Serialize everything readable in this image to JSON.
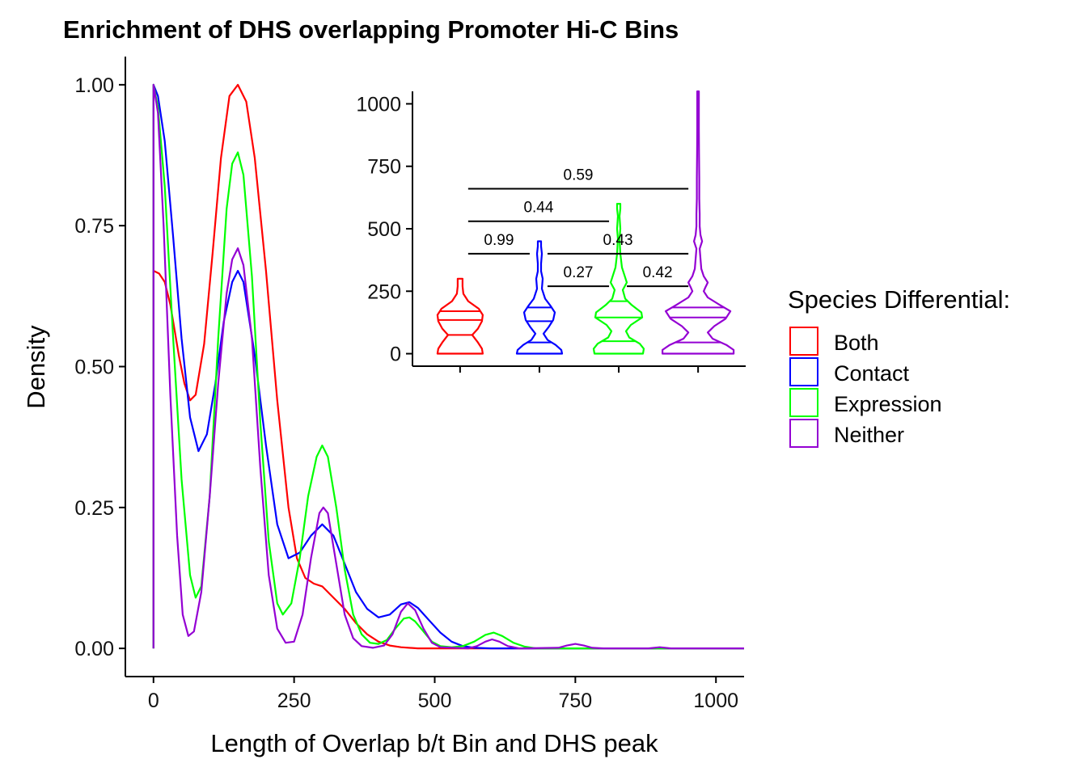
{
  "chart_data": {
    "type": "line",
    "title": "Enrichment of DHS overlapping Promoter Hi-C Bins",
    "xlabel": "Length of Overlap b/t Bin and DHS peak",
    "ylabel": "Density",
    "xlim": [
      -50,
      1050
    ],
    "ylim": [
      -0.05,
      1.05
    ],
    "x_ticks": [
      "0",
      "250",
      "500",
      "750",
      "1000"
    ],
    "y_ticks": [
      "0.00",
      "0.25",
      "0.50",
      "0.75",
      "1.00"
    ],
    "legend": {
      "title": "Species Differential:",
      "position": "right"
    },
    "series": [
      {
        "name": "Both",
        "color": "#ff0000",
        "points": [
          [
            0,
            0.67
          ],
          [
            10,
            0.665
          ],
          [
            20,
            0.65
          ],
          [
            30,
            0.61
          ],
          [
            45,
            0.52
          ],
          [
            55,
            0.47
          ],
          [
            65,
            0.44
          ],
          [
            75,
            0.45
          ],
          [
            90,
            0.54
          ],
          [
            105,
            0.7
          ],
          [
            120,
            0.87
          ],
          [
            135,
            0.98
          ],
          [
            150,
            1.0
          ],
          [
            165,
            0.97
          ],
          [
            180,
            0.87
          ],
          [
            200,
            0.67
          ],
          [
            220,
            0.44
          ],
          [
            240,
            0.25
          ],
          [
            255,
            0.16
          ],
          [
            270,
            0.125
          ],
          [
            285,
            0.115
          ],
          [
            300,
            0.11
          ],
          [
            320,
            0.09
          ],
          [
            340,
            0.07
          ],
          [
            360,
            0.045
          ],
          [
            380,
            0.025
          ],
          [
            400,
            0.012
          ],
          [
            420,
            0.005
          ],
          [
            440,
            0.002
          ],
          [
            470,
            0.0
          ],
          [
            1050,
            0.0
          ]
        ]
      },
      {
        "name": "Contact",
        "color": "#0000ff",
        "points": [
          [
            0,
            1.0
          ],
          [
            8,
            0.98
          ],
          [
            20,
            0.9
          ],
          [
            35,
            0.73
          ],
          [
            50,
            0.55
          ],
          [
            65,
            0.41
          ],
          [
            80,
            0.35
          ],
          [
            95,
            0.38
          ],
          [
            110,
            0.47
          ],
          [
            125,
            0.58
          ],
          [
            140,
            0.65
          ],
          [
            150,
            0.67
          ],
          [
            160,
            0.65
          ],
          [
            180,
            0.52
          ],
          [
            200,
            0.36
          ],
          [
            220,
            0.22
          ],
          [
            240,
            0.16
          ],
          [
            260,
            0.17
          ],
          [
            280,
            0.2
          ],
          [
            300,
            0.22
          ],
          [
            320,
            0.2
          ],
          [
            340,
            0.15
          ],
          [
            360,
            0.1
          ],
          [
            380,
            0.07
          ],
          [
            400,
            0.055
          ],
          [
            420,
            0.06
          ],
          [
            440,
            0.078
          ],
          [
            455,
            0.082
          ],
          [
            470,
            0.072
          ],
          [
            490,
            0.05
          ],
          [
            510,
            0.028
          ],
          [
            530,
            0.012
          ],
          [
            550,
            0.004
          ],
          [
            570,
            0.001
          ],
          [
            600,
            0.0
          ],
          [
            1050,
            0.0
          ]
        ]
      },
      {
        "name": "Expression",
        "color": "#00ff00",
        "points": [
          [
            0,
            1.0
          ],
          [
            8,
            0.96
          ],
          [
            20,
            0.82
          ],
          [
            35,
            0.55
          ],
          [
            50,
            0.3
          ],
          [
            65,
            0.13
          ],
          [
            75,
            0.09
          ],
          [
            85,
            0.11
          ],
          [
            100,
            0.27
          ],
          [
            115,
            0.55
          ],
          [
            130,
            0.78
          ],
          [
            140,
            0.86
          ],
          [
            150,
            0.88
          ],
          [
            160,
            0.84
          ],
          [
            175,
            0.66
          ],
          [
            190,
            0.4
          ],
          [
            205,
            0.19
          ],
          [
            220,
            0.08
          ],
          [
            230,
            0.06
          ],
          [
            245,
            0.08
          ],
          [
            260,
            0.16
          ],
          [
            275,
            0.27
          ],
          [
            290,
            0.34
          ],
          [
            300,
            0.36
          ],
          [
            310,
            0.34
          ],
          [
            325,
            0.25
          ],
          [
            340,
            0.14
          ],
          [
            355,
            0.06
          ],
          [
            370,
            0.025
          ],
          [
            385,
            0.01
          ],
          [
            400,
            0.008
          ],
          [
            415,
            0.015
          ],
          [
            430,
            0.035
          ],
          [
            445,
            0.053
          ],
          [
            455,
            0.055
          ],
          [
            465,
            0.048
          ],
          [
            480,
            0.03
          ],
          [
            495,
            0.012
          ],
          [
            510,
            0.004
          ],
          [
            530,
            0.002
          ],
          [
            550,
            0.004
          ],
          [
            570,
            0.012
          ],
          [
            590,
            0.024
          ],
          [
            605,
            0.028
          ],
          [
            620,
            0.022
          ],
          [
            640,
            0.01
          ],
          [
            660,
            0.003
          ],
          [
            680,
            0.0
          ],
          [
            1050,
            0.0
          ]
        ]
      },
      {
        "name": "Neither",
        "color": "#9400d3",
        "points": [
          [
            0,
            1.0
          ],
          [
            8,
            0.95
          ],
          [
            18,
            0.75
          ],
          [
            30,
            0.45
          ],
          [
            42,
            0.2
          ],
          [
            52,
            0.06
          ],
          [
            62,
            0.022
          ],
          [
            72,
            0.03
          ],
          [
            85,
            0.1
          ],
          [
            100,
            0.27
          ],
          [
            115,
            0.47
          ],
          [
            130,
            0.63
          ],
          [
            140,
            0.69
          ],
          [
            150,
            0.71
          ],
          [
            160,
            0.68
          ],
          [
            175,
            0.55
          ],
          [
            190,
            0.32
          ],
          [
            205,
            0.13
          ],
          [
            220,
            0.035
          ],
          [
            235,
            0.01
          ],
          [
            250,
            0.012
          ],
          [
            265,
            0.06
          ],
          [
            280,
            0.16
          ],
          [
            295,
            0.24
          ],
          [
            302,
            0.25
          ],
          [
            310,
            0.24
          ],
          [
            325,
            0.15
          ],
          [
            340,
            0.06
          ],
          [
            355,
            0.018
          ],
          [
            370,
            0.004
          ],
          [
            390,
            0.001
          ],
          [
            410,
            0.005
          ],
          [
            425,
            0.025
          ],
          [
            440,
            0.065
          ],
          [
            452,
            0.08
          ],
          [
            465,
            0.068
          ],
          [
            480,
            0.035
          ],
          [
            495,
            0.01
          ],
          [
            510,
            0.002
          ],
          [
            560,
            0.0
          ],
          [
            575,
            0.004
          ],
          [
            590,
            0.012
          ],
          [
            602,
            0.016
          ],
          [
            615,
            0.012
          ],
          [
            630,
            0.004
          ],
          [
            650,
            0.0
          ],
          [
            720,
            0.001
          ],
          [
            735,
            0.005
          ],
          [
            750,
            0.008
          ],
          [
            765,
            0.005
          ],
          [
            780,
            0.001
          ],
          [
            800,
            0.0
          ],
          [
            880,
            0.0
          ],
          [
            900,
            0.002
          ],
          [
            920,
            0.0
          ],
          [
            1050,
            0.0
          ]
        ]
      }
    ],
    "inset": {
      "type": "violin",
      "ylim": [
        -50,
        1050
      ],
      "y_ticks": [
        "0",
        "250",
        "500",
        "750",
        "1000"
      ],
      "groups": [
        {
          "name": "Both",
          "color": "#ff0000",
          "min": 0,
          "max": 300,
          "quartiles": [
            75,
            135,
            170
          ],
          "profile": [
            [
              0,
              28
            ],
            [
              20,
              27
            ],
            [
              45,
              22
            ],
            [
              75,
              15
            ],
            [
              100,
              22
            ],
            [
              130,
              27
            ],
            [
              155,
              28
            ],
            [
              180,
              23
            ],
            [
              210,
              10
            ],
            [
              240,
              4
            ],
            [
              270,
              3
            ],
            [
              300,
              3
            ]
          ]
        },
        {
          "name": "Contact",
          "color": "#0000ff",
          "min": 0,
          "max": 450,
          "quartiles": [
            45,
            130,
            185
          ],
          "profile": [
            [
              0,
              28
            ],
            [
              15,
              27
            ],
            [
              35,
              20
            ],
            [
              55,
              10
            ],
            [
              80,
              5
            ],
            [
              105,
              11
            ],
            [
              135,
              17
            ],
            [
              165,
              19
            ],
            [
              190,
              14
            ],
            [
              220,
              7
            ],
            [
              260,
              3
            ],
            [
              300,
              4
            ],
            [
              330,
              2
            ],
            [
              360,
              2
            ],
            [
              400,
              3
            ],
            [
              430,
              2
            ],
            [
              450,
              2
            ]
          ]
        },
        {
          "name": "Expression",
          "color": "#00ff00",
          "min": 0,
          "max": 600,
          "quartiles": [
            50,
            145,
            210
          ],
          "profile": [
            [
              0,
              30
            ],
            [
              20,
              31
            ],
            [
              40,
              26
            ],
            [
              65,
              13
            ],
            [
              90,
              9
            ],
            [
              115,
              15
            ],
            [
              145,
              29
            ],
            [
              165,
              28
            ],
            [
              195,
              16
            ],
            [
              220,
              8
            ],
            [
              255,
              5
            ],
            [
              285,
              10
            ],
            [
              315,
              7
            ],
            [
              345,
              4
            ],
            [
              400,
              2
            ],
            [
              460,
              1
            ],
            [
              500,
              2
            ],
            [
              550,
              1
            ],
            [
              580,
              2
            ],
            [
              600,
              2
            ]
          ]
        },
        {
          "name": "Neither",
          "color": "#9400d3",
          "min": 0,
          "max": 1050,
          "quartiles": [
            45,
            145,
            185
          ],
          "profile": [
            [
              0,
              44
            ],
            [
              15,
              44
            ],
            [
              35,
              35
            ],
            [
              60,
              18
            ],
            [
              85,
              12
            ],
            [
              110,
              20
            ],
            [
              140,
              34
            ],
            [
              170,
              40
            ],
            [
              195,
              27
            ],
            [
              225,
              12
            ],
            [
              250,
              7
            ],
            [
              265,
              9
            ],
            [
              285,
              12
            ],
            [
              310,
              7
            ],
            [
              340,
              4
            ],
            [
              380,
              3
            ],
            [
              420,
              2
            ],
            [
              450,
              5
            ],
            [
              475,
              3
            ],
            [
              510,
              2
            ],
            [
              560,
              2
            ],
            [
              620,
              1.5
            ],
            [
              700,
              1.5
            ],
            [
              800,
              1.2
            ],
            [
              900,
              1
            ],
            [
              1000,
              1
            ],
            [
              1050,
              1
            ]
          ]
        }
      ],
      "comparisons": [
        {
          "from": "Both",
          "to": "Contact",
          "label": "0.99",
          "y": 400
        },
        {
          "from": "Contact",
          "to": "Neither",
          "label": "0.43",
          "y": 400
        },
        {
          "from": "Contact",
          "to": "Expression",
          "label": "0.27",
          "y": 270
        },
        {
          "from": "Expression",
          "to": "Neither",
          "label": "0.42",
          "y": 270
        },
        {
          "from": "Both",
          "to": "Expression",
          "label": "0.44",
          "y": 530
        },
        {
          "from": "Both",
          "to": "Neither",
          "label": "0.59",
          "y": 660
        }
      ]
    }
  }
}
